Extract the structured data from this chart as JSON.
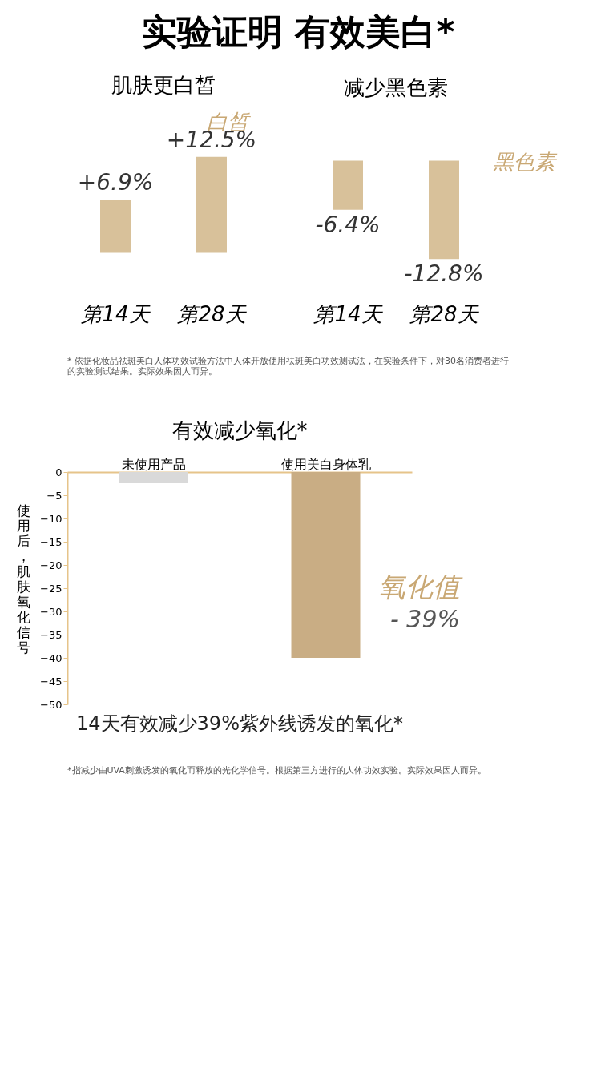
{
  "chart_data": [
    {
      "type": "bar",
      "title": "肌肤更白皙",
      "categories": [
        "第14天",
        "第28天"
      ],
      "values": [
        6.9,
        12.5
      ],
      "value_labels": [
        "+6.9%",
        "+12.5%"
      ],
      "color": "#d8c19a",
      "annotations": [
        "实验证明 有效美白*",
        "白皙"
      ]
    },
    {
      "type": "bar",
      "title": "减少黑色素",
      "categories": [
        "第14天",
        "第28天"
      ],
      "values": [
        -6.4,
        -12.8
      ],
      "value_labels": [
        "-6.4%",
        "-12.8%"
      ],
      "color": "#d8c19a",
      "annotations": [
        "黑色素",
        "* 依据化妆品祛斑美白人体功效试验方法中人体开放使用祛斑美白功效测试法，在实验条件下，对30名消费者进行的实验测试结果。实际效果因人而异。"
      ]
    },
    {
      "type": "bar",
      "title": "有效减少氧化*",
      "categories": [
        "未使用产品",
        "使用美白身体乳"
      ],
      "values": [
        -2.4,
        -40
      ],
      "colors": [
        "#d9d9d9",
        "#c9ad84"
      ],
      "ylabel": "使用后，肌肤氧化信号",
      "xlabel": "14天有效减少39%紫外线诱发的氧化*",
      "ylim": [
        -50,
        0
      ],
      "yticks": [
        0,
        -5,
        -10,
        -15,
        -20,
        -25,
        -30,
        -35,
        -40,
        -45,
        -50
      ],
      "grid": false,
      "annotations": [
        "氧化值",
        "- 39%",
        "*指减少由UVA刺激诱发的氧化而释放的光化学信号。根据第三方进行的人体功效实验。实际效果因人而异。"
      ]
    }
  ]
}
